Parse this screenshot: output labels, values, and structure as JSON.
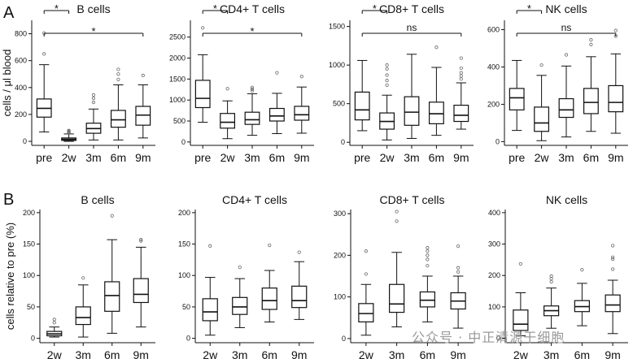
{
  "panels": {
    "A": "A",
    "B": "B"
  },
  "watermark": "公众号 · 中正清源干细胞",
  "chart_data": [
    {
      "type": "box",
      "panel": "A",
      "title": "B cells",
      "ylabel": "cells / μl blood",
      "categories": [
        "pre",
        "2w",
        "3m",
        "6m",
        "9m"
      ],
      "ylim": [
        -30,
        900
      ],
      "yticks": [
        0,
        200,
        400,
        600,
        800
      ],
      "boxes": [
        {
          "whisker_low": 70,
          "q1": 180,
          "median": 245,
          "q3": 315,
          "whisker_high": 570,
          "outliers": [
            650,
            805
          ]
        },
        {
          "whisker_low": 0,
          "q1": 7,
          "median": 15,
          "q3": 25,
          "whisker_high": 55,
          "outliers": [
            62,
            68,
            74,
            80
          ]
        },
        {
          "whisker_low": 10,
          "q1": 60,
          "median": 95,
          "q3": 135,
          "whisker_high": 240,
          "outliers": [
            290,
            320,
            345
          ]
        },
        {
          "whisker_low": 10,
          "q1": 105,
          "median": 160,
          "q3": 230,
          "whisker_high": 420,
          "outliers": [
            460,
            500,
            535
          ]
        },
        {
          "whisker_low": 25,
          "q1": 120,
          "median": 195,
          "q3": 260,
          "whisker_high": 420,
          "outliers": [
            490
          ]
        }
      ],
      "comparisons": [
        {
          "from": "pre",
          "to": "2w",
          "label": "*",
          "tier": 1
        },
        {
          "from": "pre",
          "to": "9m",
          "label": "*",
          "tier": 0
        }
      ]
    },
    {
      "type": "box",
      "panel": "A",
      "title": "CD4+ T cells",
      "categories": [
        "pre",
        "2w",
        "3m",
        "6m",
        "9m"
      ],
      "ylim": [
        -80,
        2900
      ],
      "yticks": [
        0,
        500,
        1000,
        1500,
        2000,
        2500
      ],
      "boxes": [
        {
          "whisker_low": 470,
          "q1": 820,
          "median": 1040,
          "q3": 1470,
          "whisker_high": 2080,
          "outliers": [
            2720
          ]
        },
        {
          "whisker_low": 80,
          "q1": 330,
          "median": 470,
          "q3": 680,
          "whisker_high": 980,
          "outliers": [
            1270
          ]
        },
        {
          "whisker_low": 160,
          "q1": 420,
          "median": 530,
          "q3": 710,
          "whisker_high": 1150,
          "outliers": [
            1220,
            1260,
            1300
          ]
        },
        {
          "whisker_low": 200,
          "q1": 500,
          "median": 620,
          "q3": 800,
          "whisker_high": 1160,
          "outliers": [
            1650
          ]
        },
        {
          "whisker_low": 210,
          "q1": 520,
          "median": 650,
          "q3": 850,
          "whisker_high": 1310,
          "outliers": [
            1560
          ]
        }
      ],
      "comparisons": [
        {
          "from": "pre",
          "to": "2w",
          "label": "*",
          "tier": 1
        },
        {
          "from": "pre",
          "to": "9m",
          "label": "*",
          "tier": 0
        }
      ]
    },
    {
      "type": "box",
      "panel": "A",
      "title": "CD8+ T cells",
      "categories": [
        "pre",
        "2w",
        "3m",
        "6m",
        "9m"
      ],
      "ylim": [
        -40,
        1580
      ],
      "yticks": [
        0,
        500,
        1000,
        1500
      ],
      "boxes": [
        {
          "whisker_low": 150,
          "q1": 290,
          "median": 420,
          "q3": 650,
          "whisker_high": 1060,
          "outliers": []
        },
        {
          "whisker_low": 30,
          "q1": 170,
          "median": 270,
          "q3": 380,
          "whisker_high": 610,
          "outliers": [
            740,
            800,
            870,
            950,
            1000
          ]
        },
        {
          "whisker_low": 50,
          "q1": 220,
          "median": 390,
          "q3": 590,
          "whisker_high": 1140,
          "outliers": []
        },
        {
          "whisker_low": 90,
          "q1": 240,
          "median": 370,
          "q3": 520,
          "whisker_high": 970,
          "outliers": [
            1230
          ]
        },
        {
          "whisker_low": 170,
          "q1": 270,
          "median": 350,
          "q3": 480,
          "whisker_high": 770,
          "outliers": [
            820,
            860,
            900,
            960,
            1090
          ]
        }
      ],
      "comparisons": [
        {
          "from": "pre",
          "to": "2w",
          "label": "*",
          "tier": 1
        },
        {
          "from": "pre",
          "to": "9m",
          "label": "ns",
          "tier": 0
        }
      ]
    },
    {
      "type": "box",
      "panel": "A",
      "title": "NK cells",
      "categories": [
        "pre",
        "2w",
        "3m",
        "6m",
        "9m"
      ],
      "ylim": [
        -20,
        650
      ],
      "yticks": [
        0,
        200,
        400,
        600
      ],
      "boxes": [
        {
          "whisker_low": 60,
          "q1": 170,
          "median": 235,
          "q3": 285,
          "whisker_high": 435,
          "outliers": []
        },
        {
          "whisker_low": 5,
          "q1": 55,
          "median": 100,
          "q3": 185,
          "whisker_high": 355,
          "outliers": [
            410
          ]
        },
        {
          "whisker_low": 25,
          "q1": 130,
          "median": 170,
          "q3": 230,
          "whisker_high": 405,
          "outliers": [
            465
          ]
        },
        {
          "whisker_low": 55,
          "q1": 150,
          "median": 210,
          "q3": 285,
          "whisker_high": 455,
          "outliers": [
            520,
            545
          ]
        },
        {
          "whisker_low": 45,
          "q1": 160,
          "median": 210,
          "q3": 300,
          "whisker_high": 470,
          "outliers": [
            565,
            595
          ]
        }
      ],
      "comparisons": [
        {
          "from": "pre",
          "to": "2w",
          "label": "*",
          "tier": 1
        },
        {
          "from": "pre",
          "to": "9m",
          "label": "ns",
          "tier": 0
        }
      ]
    },
    {
      "type": "box",
      "panel": "B",
      "title": "B cells",
      "ylabel": "cells relative to pre (%)",
      "categories": [
        "2w",
        "3m",
        "6m",
        "9m"
      ],
      "ylim": [
        -7,
        205
      ],
      "yticks": [
        0,
        50,
        100,
        150,
        200
      ],
      "boxes": [
        {
          "whisker_low": 2,
          "q1": 4,
          "median": 7,
          "q3": 11,
          "whisker_high": 18,
          "outliers": [
            25,
            30
          ]
        },
        {
          "whisker_low": 2,
          "q1": 22,
          "median": 33,
          "q3": 50,
          "whisker_high": 85,
          "outliers": [
            96
          ]
        },
        {
          "whisker_low": 8,
          "q1": 43,
          "median": 68,
          "q3": 90,
          "whisker_high": 157,
          "outliers": [
            195
          ]
        },
        {
          "whisker_low": 18,
          "q1": 57,
          "median": 70,
          "q3": 95,
          "whisker_high": 145,
          "outliers": [
            155,
            157
          ]
        }
      ],
      "comparisons": []
    },
    {
      "type": "box",
      "panel": "B",
      "title": "CD4+ T cells",
      "categories": [
        "2w",
        "3m",
        "6m",
        "9m"
      ],
      "ylim": [
        -7,
        205
      ],
      "yticks": [
        0,
        50,
        100,
        150,
        200
      ],
      "boxes": [
        {
          "whisker_low": 5,
          "q1": 28,
          "median": 42,
          "q3": 63,
          "whisker_high": 97,
          "outliers": [
            147
          ]
        },
        {
          "whisker_low": 17,
          "q1": 38,
          "median": 50,
          "q3": 65,
          "whisker_high": 95,
          "outliers": [
            113
          ]
        },
        {
          "whisker_low": 26,
          "q1": 46,
          "median": 60,
          "q3": 80,
          "whisker_high": 108,
          "outliers": [
            148
          ]
        },
        {
          "whisker_low": 30,
          "q1": 49,
          "median": 60,
          "q3": 83,
          "whisker_high": 122,
          "outliers": [
            137
          ]
        }
      ],
      "comparisons": []
    },
    {
      "type": "box",
      "panel": "B",
      "title": "CD8+ T cells",
      "categories": [
        "2w",
        "3m",
        "6m",
        "9m"
      ],
      "ylim": [
        -10,
        310
      ],
      "yticks": [
        0,
        100,
        200,
        300
      ],
      "boxes": [
        {
          "whisker_low": 8,
          "q1": 40,
          "median": 60,
          "q3": 84,
          "whisker_high": 130,
          "outliers": [
            155,
            210
          ]
        },
        {
          "whisker_low": 28,
          "q1": 63,
          "median": 83,
          "q3": 130,
          "whisker_high": 207,
          "outliers": [
            282,
            305
          ]
        },
        {
          "whisker_low": 40,
          "q1": 76,
          "median": 92,
          "q3": 112,
          "whisker_high": 150,
          "outliers": [
            175,
            190,
            200,
            210,
            218
          ]
        },
        {
          "whisker_low": 25,
          "q1": 71,
          "median": 90,
          "q3": 110,
          "whisker_high": 150,
          "outliers": [
            160,
            170,
            222
          ]
        }
      ],
      "comparisons": []
    },
    {
      "type": "box",
      "panel": "B",
      "title": "NK cells",
      "categories": [
        "2w",
        "3m",
        "6m",
        "9m"
      ],
      "ylim": [
        -14,
        410
      ],
      "yticks": [
        0,
        100,
        200,
        300,
        400
      ],
      "boxes": [
        {
          "whisker_low": 8,
          "q1": 25,
          "median": 45,
          "q3": 90,
          "whisker_high": 145,
          "outliers": [
            237
          ]
        },
        {
          "whisker_low": 32,
          "q1": 72,
          "median": 88,
          "q3": 103,
          "whisker_high": 160,
          "outliers": [
            180,
            190,
            198
          ]
        },
        {
          "whisker_low": 40,
          "q1": 85,
          "median": 101,
          "q3": 120,
          "whisker_high": 175,
          "outliers": [
            218
          ]
        },
        {
          "whisker_low": 15,
          "q1": 85,
          "median": 106,
          "q3": 138,
          "whisker_high": 185,
          "outliers": [
            220,
            252,
            258,
            295
          ]
        }
      ],
      "comparisons": []
    }
  ]
}
